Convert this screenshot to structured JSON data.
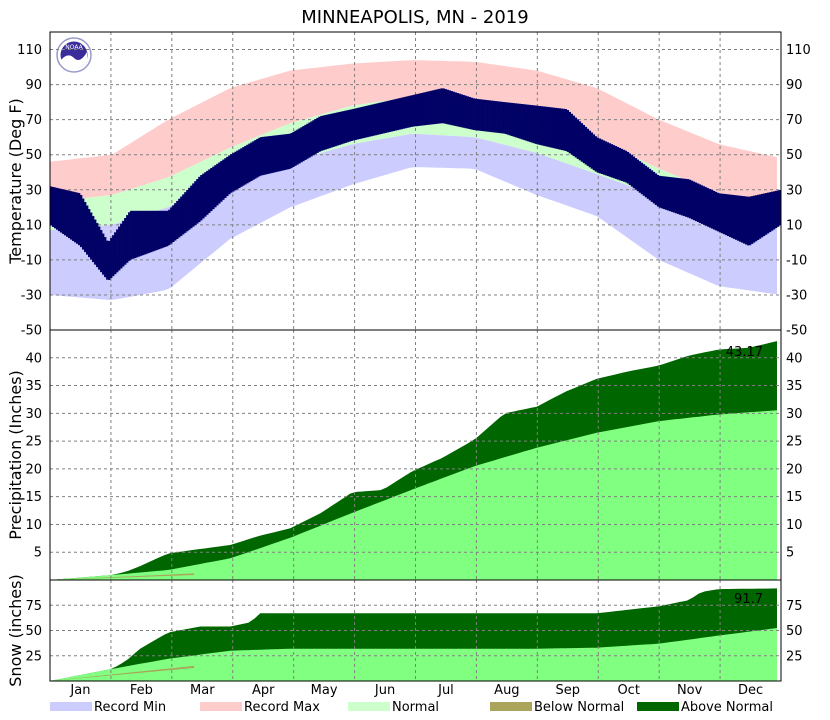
{
  "chart_data": {
    "type": "area",
    "title": "MINNEAPOLIS, MN - 2019",
    "months": [
      "Jan",
      "Feb",
      "Mar",
      "Apr",
      "May",
      "Jun",
      "Jul",
      "Aug",
      "Sep",
      "Oct",
      "Nov",
      "Dec"
    ],
    "legend": [
      {
        "label": "Record Min",
        "color": "#ccccff"
      },
      {
        "label": "Record Max",
        "color": "#ffcccc"
      },
      {
        "label": "Normal",
        "color": "#ccffcc"
      },
      {
        "label": "Below Normal",
        "color": "#aaa55a"
      },
      {
        "label": "Above Normal",
        "color": "#006600"
      }
    ],
    "colors": {
      "record_min": "#ccccff",
      "record_max": "#ffcccc",
      "normal": "#ccffcc",
      "observed_temp": "#000066",
      "normal_accum": "#80ff80",
      "above_normal": "#006600",
      "below_normal": "#aaa55a"
    },
    "temperature": {
      "ylabel": "Temperature (Deg F)",
      "ylim": [
        -50,
        120
      ],
      "ticks": [
        110,
        90,
        70,
        50,
        30,
        10,
        -10,
        -30,
        -50
      ],
      "record_max": [
        [
          0,
          46
        ],
        [
          31,
          50
        ],
        [
          59,
          70
        ],
        [
          90,
          88
        ],
        [
          120,
          98
        ],
        [
          151,
          102
        ],
        [
          181,
          104
        ],
        [
          212,
          103
        ],
        [
          243,
          98
        ],
        [
          273,
          88
        ],
        [
          304,
          70
        ],
        [
          334,
          56
        ],
        [
          365,
          48
        ]
      ],
      "normal_high": [
        [
          0,
          23
        ],
        [
          31,
          27
        ],
        [
          59,
          37
        ],
        [
          90,
          54
        ],
        [
          120,
          68
        ],
        [
          151,
          78
        ],
        [
          181,
          83
        ],
        [
          212,
          81
        ],
        [
          243,
          72
        ],
        [
          273,
          59
        ],
        [
          304,
          42
        ],
        [
          334,
          28
        ],
        [
          365,
          23
        ]
      ],
      "normal_low": [
        [
          0,
          7
        ],
        [
          31,
          10
        ],
        [
          59,
          20
        ],
        [
          90,
          34
        ],
        [
          120,
          46
        ],
        [
          151,
          56
        ],
        [
          181,
          62
        ],
        [
          212,
          60
        ],
        [
          243,
          51
        ],
        [
          273,
          39
        ],
        [
          304,
          26
        ],
        [
          334,
          13
        ],
        [
          365,
          7
        ]
      ],
      "record_min": [
        [
          0,
          -30
        ],
        [
          31,
          -33
        ],
        [
          59,
          -27
        ],
        [
          90,
          2
        ],
        [
          120,
          20
        ],
        [
          151,
          33
        ],
        [
          181,
          43
        ],
        [
          212,
          42
        ],
        [
          243,
          27
        ],
        [
          273,
          15
        ],
        [
          304,
          -10
        ],
        [
          334,
          -25
        ],
        [
          365,
          -30
        ]
      ],
      "observed_high": [
        [
          0,
          32
        ],
        [
          15,
          28
        ],
        [
          29,
          0
        ],
        [
          40,
          18
        ],
        [
          59,
          18
        ],
        [
          75,
          38
        ],
        [
          90,
          50
        ],
        [
          105,
          60
        ],
        [
          120,
          62
        ],
        [
          135,
          72
        ],
        [
          151,
          76
        ],
        [
          166,
          80
        ],
        [
          181,
          84
        ],
        [
          196,
          88
        ],
        [
          212,
          82
        ],
        [
          227,
          80
        ],
        [
          243,
          78
        ],
        [
          258,
          76
        ],
        [
          273,
          60
        ],
        [
          288,
          52
        ],
        [
          304,
          38
        ],
        [
          319,
          36
        ],
        [
          334,
          28
        ],
        [
          349,
          26
        ],
        [
          365,
          30
        ]
      ],
      "observed_low": [
        [
          0,
          10
        ],
        [
          15,
          -2
        ],
        [
          29,
          -22
        ],
        [
          40,
          -10
        ],
        [
          59,
          -2
        ],
        [
          75,
          12
        ],
        [
          90,
          28
        ],
        [
          105,
          38
        ],
        [
          120,
          42
        ],
        [
          135,
          52
        ],
        [
          151,
          58
        ],
        [
          166,
          62
        ],
        [
          181,
          66
        ],
        [
          196,
          68
        ],
        [
          212,
          64
        ],
        [
          227,
          62
        ],
        [
          243,
          56
        ],
        [
          258,
          52
        ],
        [
          273,
          40
        ],
        [
          288,
          34
        ],
        [
          304,
          20
        ],
        [
          319,
          14
        ],
        [
          334,
          6
        ],
        [
          349,
          -2
        ],
        [
          365,
          10
        ]
      ]
    },
    "precipitation": {
      "ylabel": "Precipitation (Inches)",
      "ylim": [
        0,
        45
      ],
      "ticks": [
        5,
        10,
        15,
        20,
        25,
        30,
        35,
        40
      ],
      "total_label": "43.17",
      "normal": [
        [
          0,
          0
        ],
        [
          31,
          0.9
        ],
        [
          59,
          1.8
        ],
        [
          90,
          3.9
        ],
        [
          120,
          7.6
        ],
        [
          151,
          12.1
        ],
        [
          181,
          16.3
        ],
        [
          212,
          20.5
        ],
        [
          243,
          23.8
        ],
        [
          273,
          26.5
        ],
        [
          304,
          28.6
        ],
        [
          334,
          29.8
        ],
        [
          365,
          30.6
        ]
      ],
      "observed": [
        [
          0,
          0
        ],
        [
          31,
          0.9
        ],
        [
          38,
          1.5
        ],
        [
          45,
          2.5
        ],
        [
          59,
          4.8
        ],
        [
          90,
          6.3
        ],
        [
          105,
          8.0
        ],
        [
          120,
          9.3
        ],
        [
          135,
          12.0
        ],
        [
          151,
          15.8
        ],
        [
          166,
          16.2
        ],
        [
          181,
          19.6
        ],
        [
          196,
          22.0
        ],
        [
          212,
          25.3
        ],
        [
          227,
          30.0
        ],
        [
          243,
          31.2
        ],
        [
          258,
          34.0
        ],
        [
          273,
          36.2
        ],
        [
          288,
          37.5
        ],
        [
          304,
          38.6
        ],
        [
          319,
          40.4
        ],
        [
          334,
          41.5
        ],
        [
          349,
          41.8
        ],
        [
          365,
          43.17
        ]
      ]
    },
    "snow": {
      "ylabel": "Snow (inches)",
      "ylim": [
        0,
        100
      ],
      "ticks": [
        25,
        50,
        75
      ],
      "total_label": "91.7",
      "normal": [
        [
          0,
          0
        ],
        [
          31,
          12
        ],
        [
          59,
          22
        ],
        [
          90,
          30
        ],
        [
          120,
          32
        ],
        [
          151,
          32
        ],
        [
          181,
          32
        ],
        [
          212,
          32
        ],
        [
          243,
          32
        ],
        [
          273,
          33
        ],
        [
          304,
          37
        ],
        [
          334,
          45
        ],
        [
          365,
          53
        ]
      ],
      "observed": [
        [
          0,
          0
        ],
        [
          31,
          12
        ],
        [
          38,
          20
        ],
        [
          45,
          32
        ],
        [
          59,
          48
        ],
        [
          75,
          54
        ],
        [
          90,
          54
        ],
        [
          100,
          58
        ],
        [
          105,
          67
        ],
        [
          181,
          67
        ],
        [
          212,
          67
        ],
        [
          243,
          67
        ],
        [
          273,
          67
        ],
        [
          304,
          74
        ],
        [
          319,
          80
        ],
        [
          325,
          88
        ],
        [
          334,
          91
        ],
        [
          365,
          91.7
        ]
      ]
    }
  }
}
